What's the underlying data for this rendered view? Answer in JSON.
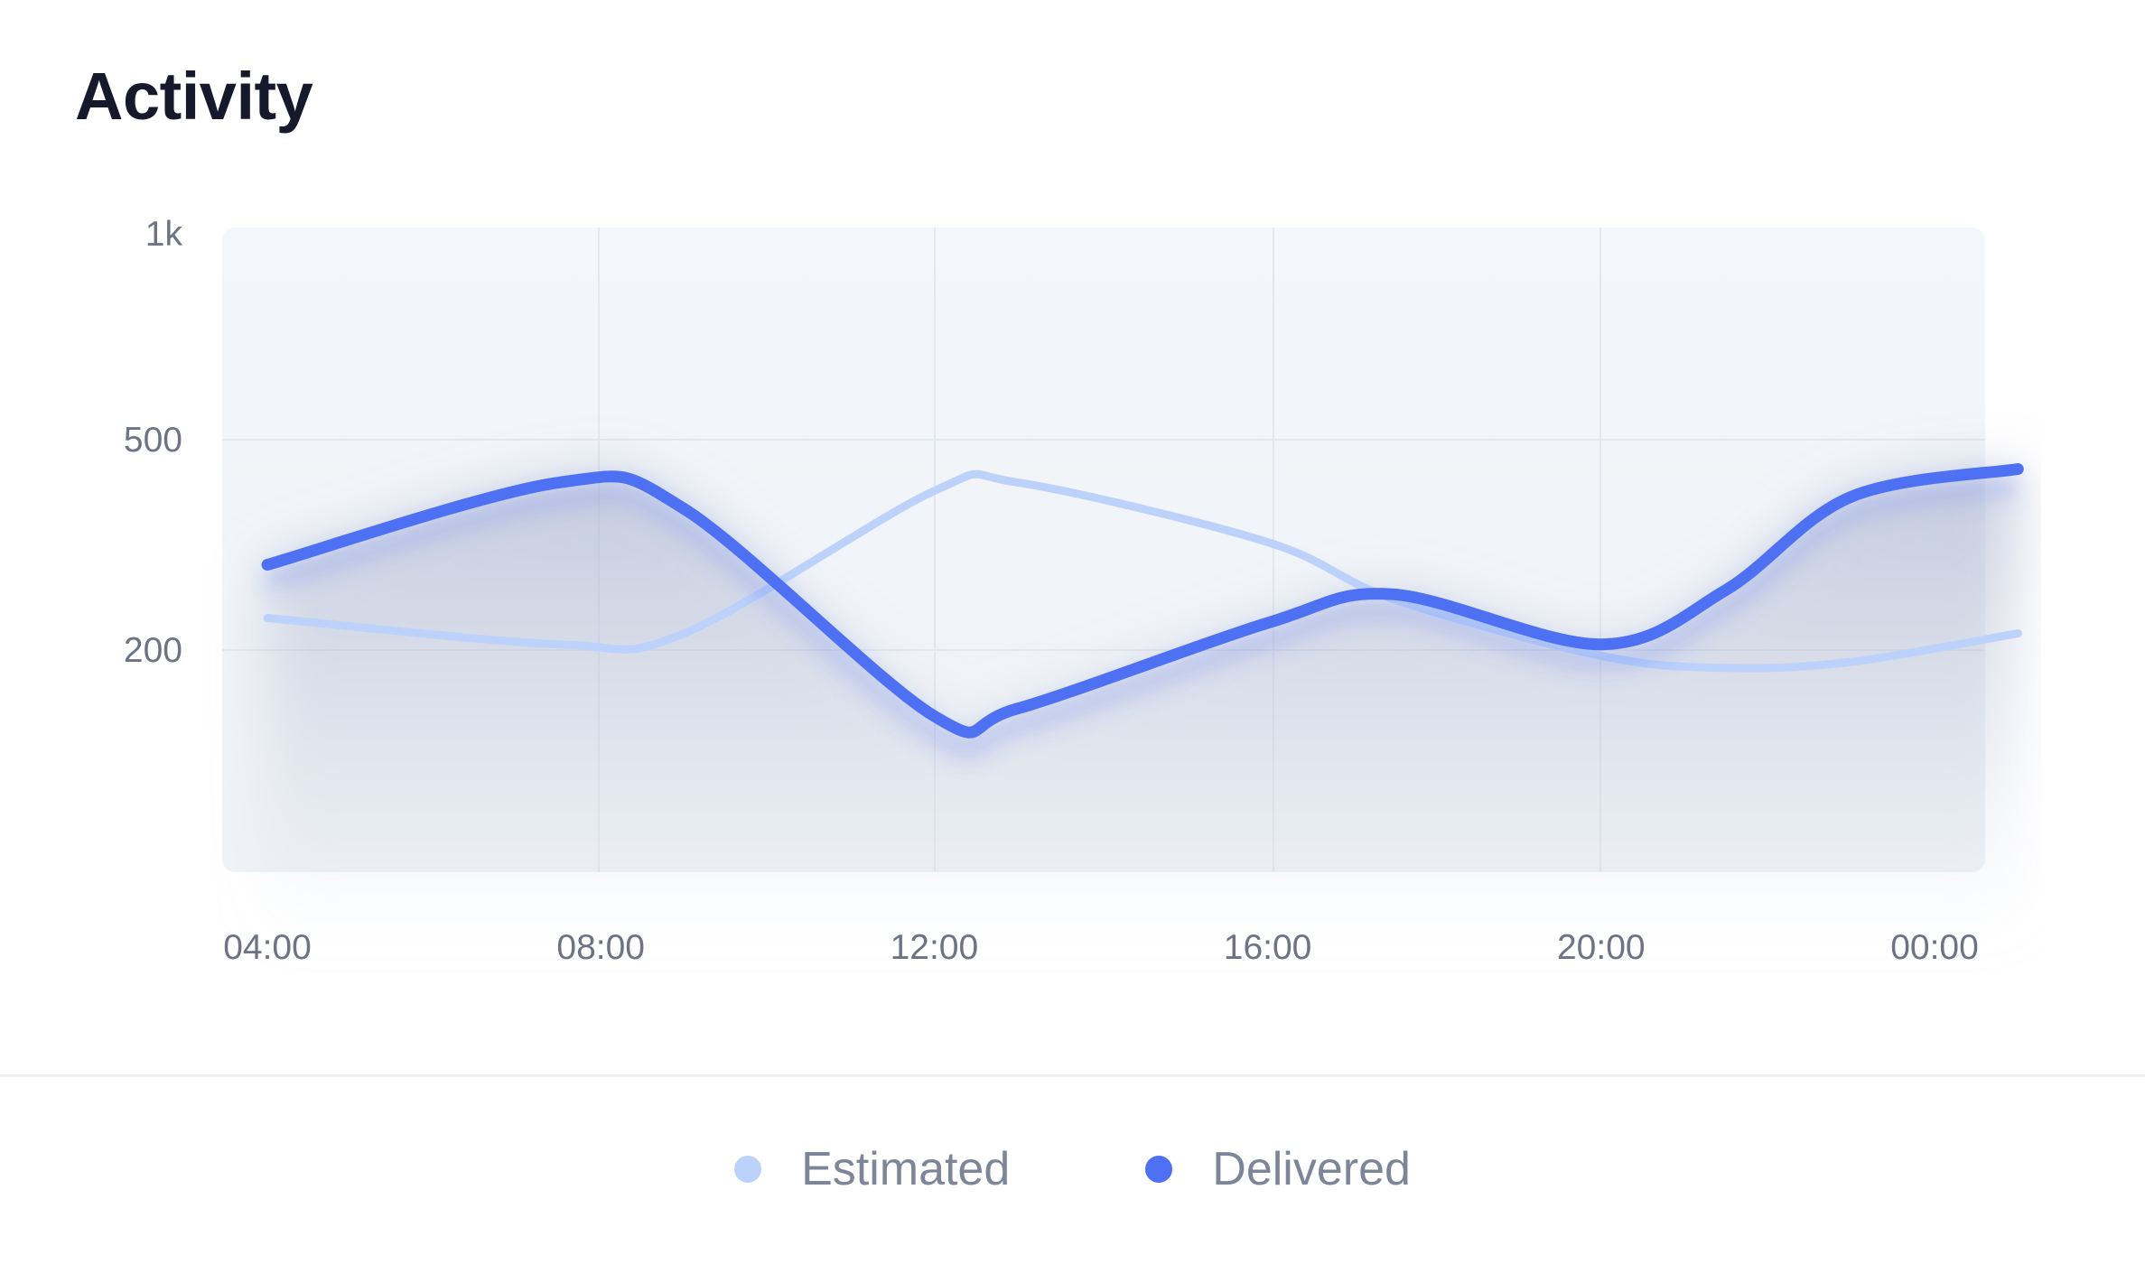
{
  "card": {
    "title": "Activity"
  },
  "chart_data": {
    "type": "line",
    "title": "Activity",
    "xlabel": "",
    "ylabel": "",
    "x_ticks": [
      "04:00",
      "08:00",
      "12:00",
      "16:00",
      "20:00",
      "00:00"
    ],
    "y_ticks": [
      {
        "label": "1k",
        "value": 1000
      },
      {
        "label": "500",
        "value": 500
      },
      {
        "label": "200",
        "value": 200
      }
    ],
    "y_scale": "log",
    "x_range": [
      4,
      24
    ],
    "grid": true,
    "legend_position": "bottom-center",
    "series": [
      {
        "name": "Estimated",
        "color": "#bcd2fb",
        "points": [
          [
            4,
            230
          ],
          [
            7.5,
            205
          ],
          [
            9,
            215
          ],
          [
            12,
            400
          ],
          [
            13,
            415
          ],
          [
            16,
            320
          ],
          [
            17.5,
            250
          ],
          [
            20,
            195
          ],
          [
            21.5,
            185
          ],
          [
            23,
            190
          ],
          [
            25,
            215
          ]
        ]
      },
      {
        "name": "Delivered",
        "color": "#4e71f3",
        "points": [
          [
            4,
            290
          ],
          [
            7.5,
            415
          ],
          [
            9,
            370
          ],
          [
            12,
            150
          ],
          [
            13,
            155
          ],
          [
            16,
            225
          ],
          [
            17.5,
            255
          ],
          [
            20,
            205
          ],
          [
            21.5,
            260
          ],
          [
            23,
            390
          ],
          [
            25,
            440
          ]
        ]
      }
    ]
  }
}
